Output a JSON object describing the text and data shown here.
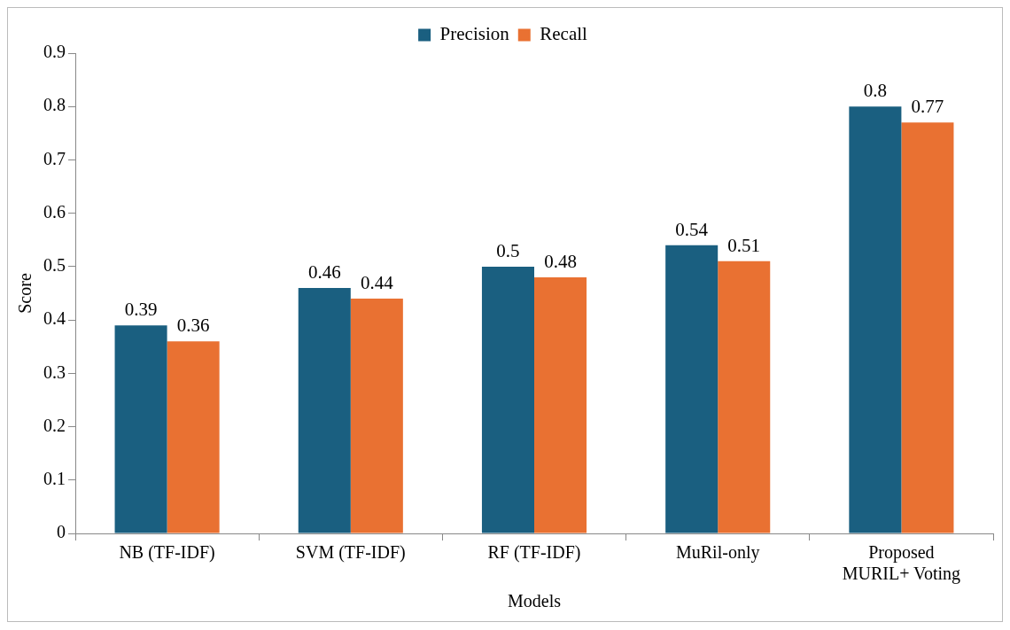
{
  "chart_data": {
    "type": "bar",
    "xlabel": "Models",
    "ylabel": "Score",
    "categories": [
      "NB (TF-IDF)",
      "SVM (TF-IDF)",
      "RF (TF-IDF)",
      "MuRil-only",
      "Proposed MURIL+ Voting"
    ],
    "series": [
      {
        "name": "Precision",
        "color": "#1a5f80",
        "values": [
          0.39,
          0.46,
          0.5,
          0.54,
          0.8
        ]
      },
      {
        "name": "Recall",
        "color": "#e97132",
        "values": [
          0.36,
          0.44,
          0.48,
          0.51,
          0.77
        ]
      }
    ],
    "ylim": [
      0,
      0.9
    ],
    "yticks": [
      0,
      0.1,
      0.2,
      0.3,
      0.4,
      0.5,
      0.6,
      0.7,
      0.8,
      0.9
    ],
    "legend": "top",
    "data_labels": true
  }
}
